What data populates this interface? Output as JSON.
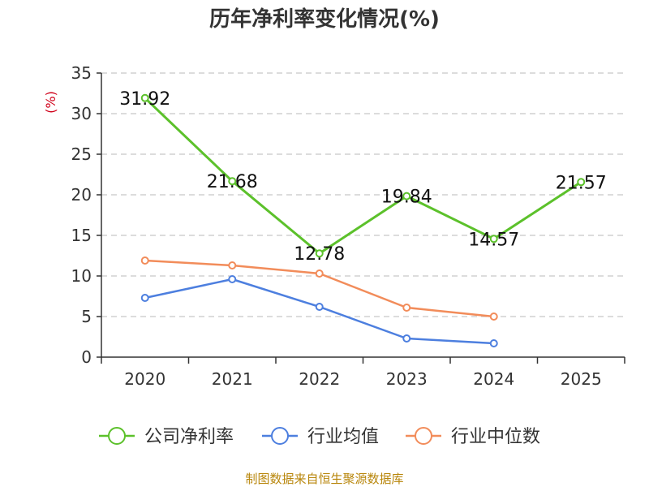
{
  "chart_data": {
    "type": "line",
    "title": "历年净利率变化情况(%)",
    "ylabel": "(%)",
    "xlabel": "",
    "ylim": [
      0,
      35
    ],
    "yticks": [
      0,
      5,
      10,
      15,
      20,
      25,
      30,
      35
    ],
    "categories": [
      "2020",
      "2021",
      "2022",
      "2023",
      "2024",
      "2025"
    ],
    "grid": true,
    "legend_position": "bottom-center",
    "series": [
      {
        "name": "公司净利率",
        "color": "#5cc12b",
        "values": [
          31.92,
          21.68,
          12.78,
          19.84,
          14.57,
          21.57
        ],
        "labels": [
          "31.92",
          "21.68",
          "12.78",
          "19.84",
          "14.57",
          "21.57"
        ]
      },
      {
        "name": "行业均值",
        "color": "#4d7fdf",
        "values": [
          7.3,
          9.6,
          6.2,
          2.3,
          1.7,
          null
        ]
      },
      {
        "name": "行业中位数",
        "color": "#f28c5a",
        "values": [
          11.9,
          11.3,
          10.3,
          6.1,
          5.0,
          null
        ]
      }
    ],
    "source": "制图数据来自恒生聚源数据库"
  }
}
